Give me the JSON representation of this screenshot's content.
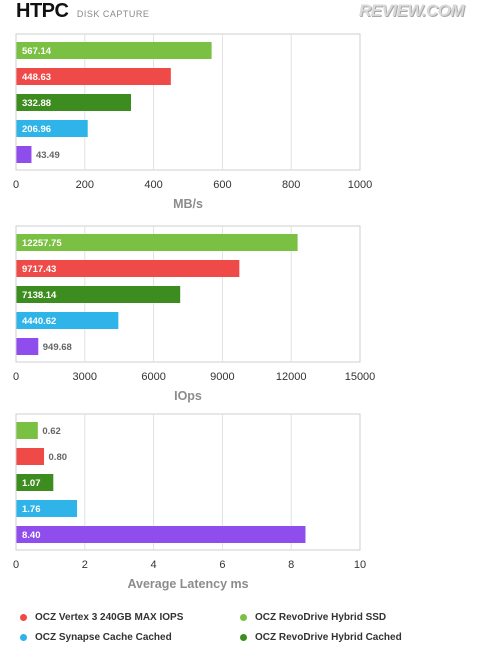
{
  "header": {
    "title": "HTPC",
    "subtitle": "DISK CAPTURE",
    "logo": "REVIEW.COM"
  },
  "colors": {
    "revodrive_hybrid_ssd": "#7ac143",
    "vertex3": "#f04a48",
    "revodrive_hybrid_cached": "#3d8c1f",
    "synapse_cached": "#2eb4e8",
    "extra": "#8f4ded"
  },
  "chart_data": [
    {
      "type": "bar",
      "orientation": "horizontal",
      "xlabel": "MB/s",
      "xlim": [
        0,
        1000
      ],
      "ticks": [
        "0",
        "200",
        "400",
        "600",
        "800",
        "1000"
      ],
      "values": [
        567.14,
        448.63,
        332.88,
        206.96,
        43.49
      ],
      "labels": [
        "567.14",
        "448.63",
        "332.88",
        "206.96",
        "43.49"
      ],
      "bar_colors": [
        "#7ac143",
        "#f04a48",
        "#3d8c1f",
        "#2eb4e8",
        "#8f4ded"
      ]
    },
    {
      "type": "bar",
      "orientation": "horizontal",
      "xlabel": "IOps",
      "xlim": [
        0,
        15000
      ],
      "ticks": [
        "0",
        "3000",
        "6000",
        "9000",
        "12000",
        "15000"
      ],
      "values": [
        12257.75,
        9717.43,
        7138.14,
        4440.62,
        949.68
      ],
      "labels": [
        "12257.75",
        "9717.43",
        "7138.14",
        "4440.62",
        "949.68"
      ],
      "bar_colors": [
        "#7ac143",
        "#f04a48",
        "#3d8c1f",
        "#2eb4e8",
        "#8f4ded"
      ]
    },
    {
      "type": "bar",
      "orientation": "horizontal",
      "xlabel": "Average Latency ms",
      "xlim": [
        0,
        10
      ],
      "ticks": [
        "0",
        "2",
        "4",
        "6",
        "8",
        "10"
      ],
      "values": [
        0.62,
        0.8,
        1.07,
        1.76,
        8.4
      ],
      "labels": [
        "0.62",
        "0.80",
        "1.07",
        "1.76",
        "8.40"
      ],
      "bar_colors": [
        "#7ac143",
        "#f04a48",
        "#3d8c1f",
        "#2eb4e8",
        "#8f4ded"
      ]
    }
  ],
  "legend": [
    {
      "label": "OCZ Vertex 3 240GB MAX IOPS",
      "color": "#f04a48"
    },
    {
      "label": "OCZ RevoDrive Hybrid SSD",
      "color": "#7ac143"
    },
    {
      "label": "OCZ Synapse Cache Cached",
      "color": "#2eb4e8"
    },
    {
      "label": "OCZ RevoDrive Hybrid Cached",
      "color": "#3d8c1f"
    }
  ]
}
